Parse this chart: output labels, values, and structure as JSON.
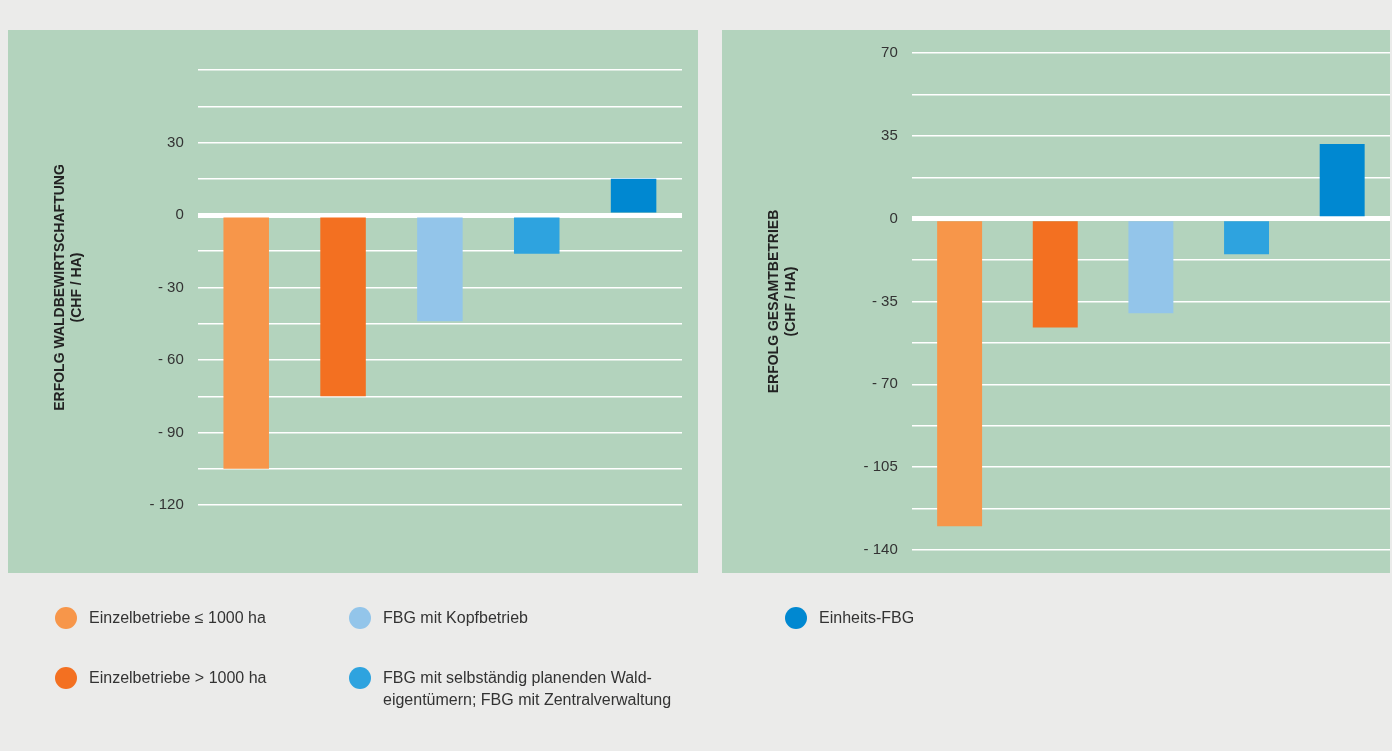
{
  "chart_data": [
    {
      "type": "bar",
      "ylabel": "ERFOLG WALDBEWIRTSCHAFTUNG (CHF / HA)",
      "categories": [
        null,
        null,
        null,
        null,
        null
      ],
      "stacked": true,
      "legend": "bottom",
      "grid": "y",
      "ylim": [
        -120,
        60
      ],
      "yticks": [
        {
          "value": -120,
          "label": "- 120"
        },
        {
          "value": -105,
          "label": null
        },
        {
          "value": -90,
          "label": "- 90"
        },
        {
          "value": -75,
          "label": null
        },
        {
          "value": -60,
          "label": "- 60"
        },
        {
          "value": -45,
          "label": null
        },
        {
          "value": -30,
          "label": "- 30"
        },
        {
          "value": -15,
          "label": null
        },
        0,
        {
          "value": 15,
          "label": null
        },
        30,
        {
          "value": 45,
          "label": null
        },
        {
          "value": 60,
          "label": null
        }
      ],
      "series": [
        {
          "name": "Einzelbetriebe ≤ 1000 ha",
          "color": "#f7964a",
          "values": [
            -105,
            null,
            null,
            null,
            null
          ]
        },
        {
          "name": "Einzelbetriebe > 1000 ha",
          "color": "#f37021",
          "values": [
            null,
            -75,
            null,
            null,
            null
          ]
        },
        {
          "name": "FBG mit Kopfbetrieb",
          "color": "#93c5ea",
          "values": [
            null,
            null,
            -44,
            null,
            null
          ]
        },
        {
          "name": "FBG mit selbständig planenden Wald- eigentümern; FBG mit Zentralverwaltung",
          "color": "#2ea3df",
          "values": [
            null,
            null,
            null,
            -16,
            null
          ]
        },
        {
          "name": "Einheits-FBG",
          "color": "#0088d1",
          "values": [
            null,
            null,
            null,
            null,
            15
          ]
        }
      ]
    },
    {
      "type": "bar",
      "ylabel": "ERFOLG GESAMTBETRIEB (CHF / HA)",
      "categories": [
        null,
        null,
        null,
        null,
        null
      ],
      "stacked": true,
      "grid": "y",
      "ylim": [
        -140,
        70
      ],
      "yticks": [
        {
          "value": -140,
          "label": "- 140"
        },
        {
          "value": -122.5,
          "label": null
        },
        {
          "value": -105,
          "label": "- 105"
        },
        {
          "value": -87.5,
          "label": null
        },
        {
          "value": -70,
          "label": "- 70"
        },
        {
          "value": -52.5,
          "label": null
        },
        {
          "value": -35,
          "label": "- 35"
        },
        {
          "value": -17.5,
          "label": null
        },
        0,
        {
          "value": 17.5,
          "label": null
        },
        35,
        {
          "value": 52.5,
          "label": null
        },
        70
      ],
      "series": [
        {
          "color": "#f7964a",
          "values": [
            -130,
            null,
            null,
            null,
            null
          ]
        },
        {
          "color": "#f37021",
          "values": [
            null,
            -46,
            null,
            null,
            null
          ]
        },
        {
          "color": "#93c5ea",
          "values": [
            null,
            null,
            -40,
            null,
            null
          ]
        },
        {
          "color": "#2ea3df",
          "values": [
            null,
            null,
            null,
            -15,
            null
          ]
        },
        {
          "color": "#0088d1",
          "values": [
            null,
            null,
            null,
            null,
            31.5
          ]
        }
      ]
    }
  ]
}
